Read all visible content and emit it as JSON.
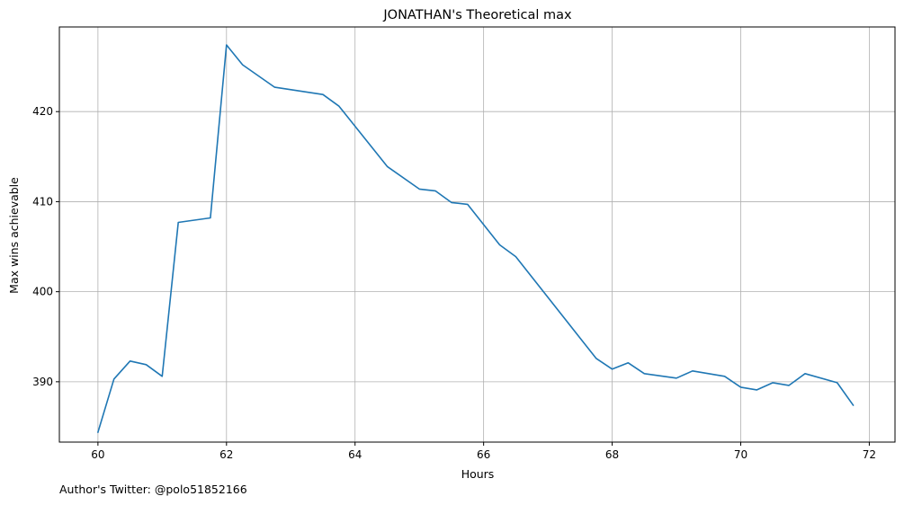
{
  "chart_data": {
    "type": "line",
    "title": "JONATHAN's Theoretical max",
    "xlabel": "Hours",
    "ylabel": "Max wins achievable",
    "xlim": [
      59.4,
      72.4
    ],
    "ylim": [
      383.3,
      429.4
    ],
    "xticks": [
      60,
      62,
      64,
      66,
      68,
      70,
      72
    ],
    "yticks": [
      390,
      400,
      410,
      420
    ],
    "grid": true,
    "line_color": "#1f77b4",
    "series": [
      {
        "x": [
          60,
          60.25,
          60.5,
          60.75,
          61,
          61.25,
          61.75,
          62,
          62.25,
          62.75,
          63.5,
          63.75,
          64.5,
          65,
          65.25,
          65.5,
          65.75,
          66.25,
          66.5,
          67.75,
          68,
          68.25,
          68.5,
          69,
          69.25,
          69.75,
          70,
          70.25,
          70.5,
          70.75,
          71,
          71.5,
          71.75
        ],
        "y": [
          384.4,
          390.3,
          392.3,
          391.9,
          390.6,
          407.7,
          408.2,
          427.4,
          425.2,
          422.7,
          421.9,
          420.6,
          413.9,
          411.4,
          411.2,
          409.9,
          409.7,
          405.2,
          403.9,
          392.6,
          391.4,
          392.1,
          390.9,
          390.4,
          391.2,
          390.6,
          389.4,
          389.1,
          389.9,
          389.6,
          390.9,
          389.9,
          387.4
        ]
      }
    ]
  },
  "footer": {
    "text": "Author's Twitter: @polo51852166"
  }
}
